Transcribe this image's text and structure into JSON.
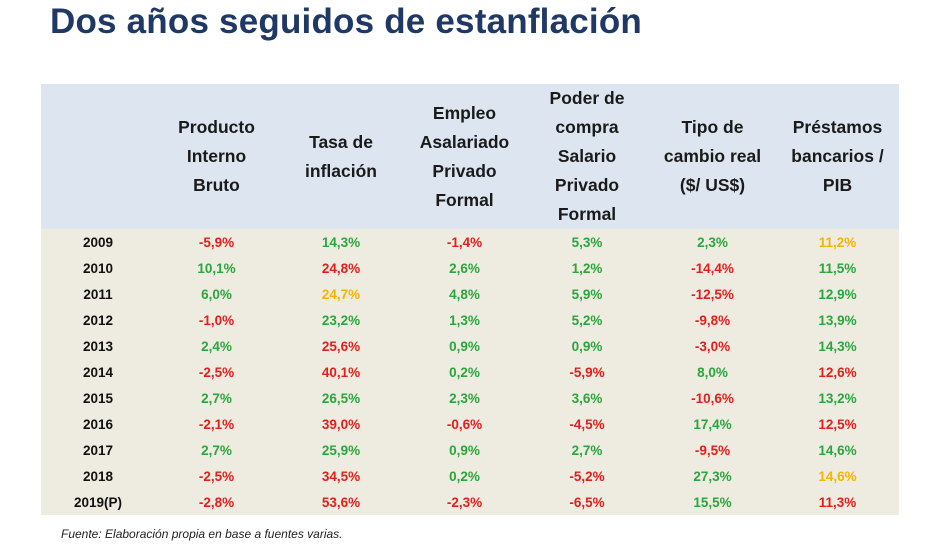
{
  "title": "Dos años seguidos de estanflación",
  "source": "Fuente: Elaboración propia en base a fuentes varias.",
  "colors": {
    "red": "#e0201c",
    "green": "#2aa63c",
    "yellow": "#f4b400",
    "title": "#1f3864",
    "header_bg": "#dde6f0",
    "body_bg": "#eeebe0"
  },
  "table": {
    "headers": [
      [],
      [
        "Producto",
        "Interno",
        "Bruto"
      ],
      [
        "Tasa de",
        "inflación"
      ],
      [
        "Empleo",
        "Asalariado",
        "Privado",
        "Formal"
      ],
      [
        "Poder de",
        "compra",
        "Salario",
        "Privado",
        "Formal"
      ],
      [
        "Tipo de",
        "cambio real",
        "($/ US$)"
      ],
      [
        "Préstamos",
        "bancarios /",
        "PIB"
      ]
    ],
    "rows": [
      {
        "year": "2009",
        "cells": [
          [
            "-5,9%",
            "red"
          ],
          [
            "14,3%",
            "green"
          ],
          [
            "-1,4%",
            "red"
          ],
          [
            "5,3%",
            "green"
          ],
          [
            "2,3%",
            "green"
          ],
          [
            "11,2%",
            "yellow"
          ]
        ]
      },
      {
        "year": "2010",
        "cells": [
          [
            "10,1%",
            "green"
          ],
          [
            "24,8%",
            "red"
          ],
          [
            "2,6%",
            "green"
          ],
          [
            "1,2%",
            "green"
          ],
          [
            "-14,4%",
            "red"
          ],
          [
            "11,5%",
            "green"
          ]
        ]
      },
      {
        "year": "2011",
        "cells": [
          [
            "6,0%",
            "green"
          ],
          [
            "24,7%",
            "yellow"
          ],
          [
            "4,8%",
            "green"
          ],
          [
            "5,9%",
            "green"
          ],
          [
            "-12,5%",
            "red"
          ],
          [
            "12,9%",
            "green"
          ]
        ]
      },
      {
        "year": "2012",
        "cells": [
          [
            "-1,0%",
            "red"
          ],
          [
            "23,2%",
            "green"
          ],
          [
            "1,3%",
            "green"
          ],
          [
            "5,2%",
            "green"
          ],
          [
            "-9,8%",
            "red"
          ],
          [
            "13,9%",
            "green"
          ]
        ]
      },
      {
        "year": "2013",
        "cells": [
          [
            "2,4%",
            "green"
          ],
          [
            "25,6%",
            "red"
          ],
          [
            "0,9%",
            "green"
          ],
          [
            "0,9%",
            "green"
          ],
          [
            "-3,0%",
            "red"
          ],
          [
            "14,3%",
            "green"
          ]
        ]
      },
      {
        "year": "2014",
        "cells": [
          [
            "-2,5%",
            "red"
          ],
          [
            "40,1%",
            "red"
          ],
          [
            "0,2%",
            "green"
          ],
          [
            "-5,9%",
            "red"
          ],
          [
            "8,0%",
            "green"
          ],
          [
            "12,6%",
            "red"
          ]
        ]
      },
      {
        "year": "2015",
        "cells": [
          [
            "2,7%",
            "green"
          ],
          [
            "26,5%",
            "green"
          ],
          [
            "2,3%",
            "green"
          ],
          [
            "3,6%",
            "green"
          ],
          [
            "-10,6%",
            "red"
          ],
          [
            "13,2%",
            "green"
          ]
        ]
      },
      {
        "year": "2016",
        "cells": [
          [
            "-2,1%",
            "red"
          ],
          [
            "39,0%",
            "red"
          ],
          [
            "-0,6%",
            "red"
          ],
          [
            "-4,5%",
            "red"
          ],
          [
            "17,4%",
            "green"
          ],
          [
            "12,5%",
            "red"
          ]
        ]
      },
      {
        "year": "2017",
        "cells": [
          [
            "2,7%",
            "green"
          ],
          [
            "25,9%",
            "green"
          ],
          [
            "0,9%",
            "green"
          ],
          [
            "2,7%",
            "green"
          ],
          [
            "-9,5%",
            "red"
          ],
          [
            "14,6%",
            "green"
          ]
        ]
      },
      {
        "year": "2018",
        "cells": [
          [
            "-2,5%",
            "red"
          ],
          [
            "34,5%",
            "red"
          ],
          [
            "0,2%",
            "green"
          ],
          [
            "-5,2%",
            "red"
          ],
          [
            "27,3%",
            "green"
          ],
          [
            "14,6%",
            "yellow"
          ]
        ]
      },
      {
        "year": "2019(P)",
        "cells": [
          [
            "-2,8%",
            "red"
          ],
          [
            "53,6%",
            "red"
          ],
          [
            "-2,3%",
            "red"
          ],
          [
            "-6,5%",
            "red"
          ],
          [
            "15,5%",
            "green"
          ],
          [
            "11,3%",
            "red"
          ]
        ]
      }
    ]
  }
}
